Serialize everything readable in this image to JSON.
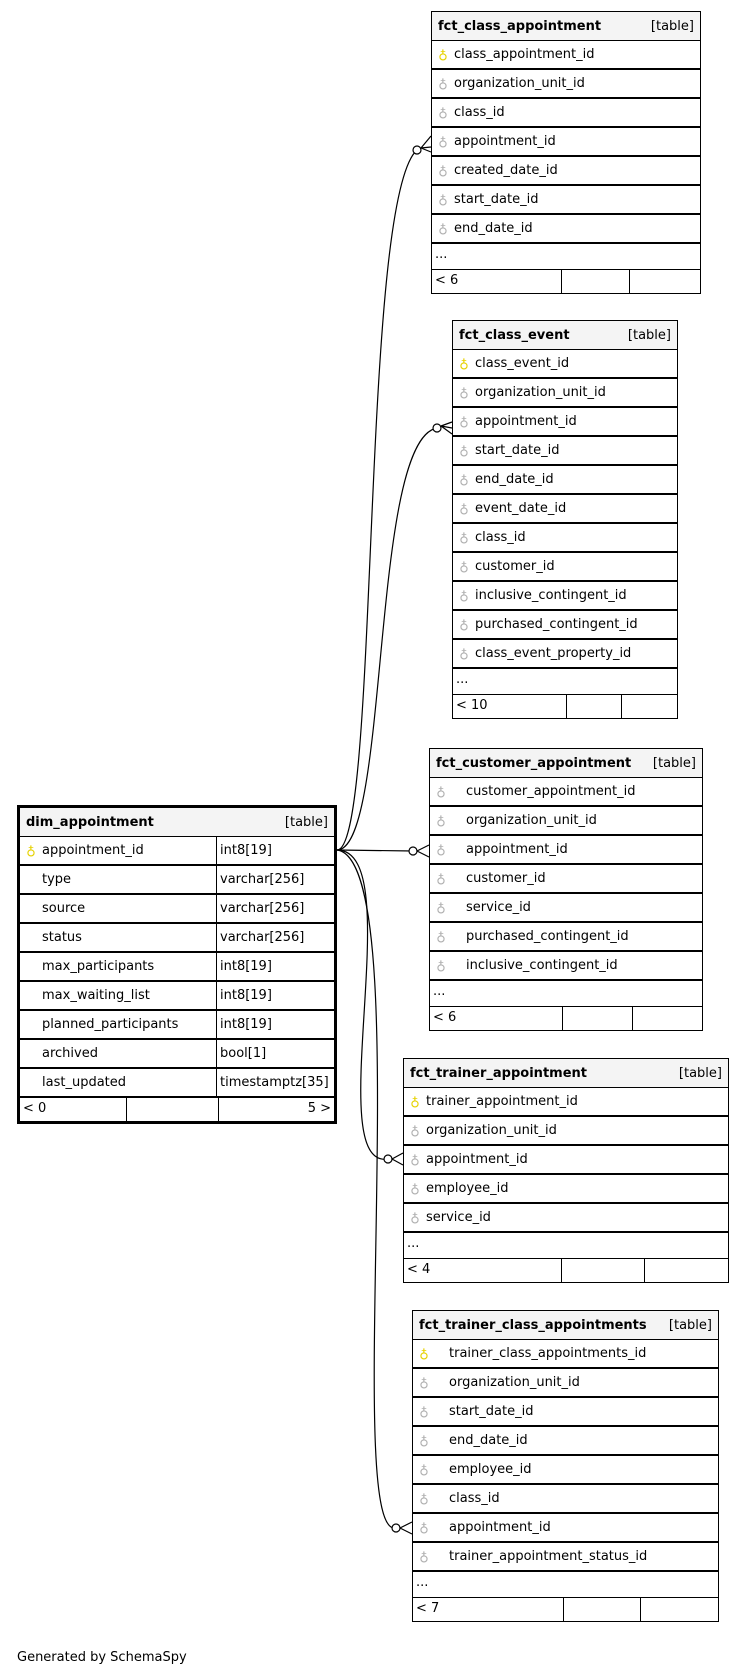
{
  "tables": [
    {
      "id": "fct_class_appointment",
      "name": "fct_class_appointment",
      "kind": "[table]",
      "columns": [
        {
          "name": "class_appointment_id",
          "key": "primary"
        },
        {
          "name": "organization_unit_id",
          "key": "foreign"
        },
        {
          "name": "class_id",
          "key": "foreign"
        },
        {
          "name": "appointment_id",
          "key": "foreign"
        },
        {
          "name": "created_date_id",
          "key": "foreign"
        },
        {
          "name": "start_date_id",
          "key": "foreign"
        },
        {
          "name": "end_date_id",
          "key": "foreign"
        }
      ],
      "more": "...",
      "footer": [
        "< 6",
        "",
        ""
      ]
    },
    {
      "id": "fct_class_event",
      "name": "fct_class_event",
      "kind": "[table]",
      "columns": [
        {
          "name": "class_event_id",
          "key": "primary"
        },
        {
          "name": "organization_unit_id",
          "key": "foreign"
        },
        {
          "name": "appointment_id",
          "key": "foreign"
        },
        {
          "name": "start_date_id",
          "key": "foreign"
        },
        {
          "name": "end_date_id",
          "key": "foreign"
        },
        {
          "name": "event_date_id",
          "key": "foreign"
        },
        {
          "name": "class_id",
          "key": "foreign"
        },
        {
          "name": "customer_id",
          "key": "foreign"
        },
        {
          "name": "inclusive_contingent_id",
          "key": "foreign"
        },
        {
          "name": "purchased_contingent_id",
          "key": "foreign"
        },
        {
          "name": "class_event_property_id",
          "key": "foreign"
        }
      ],
      "more": "...",
      "footer": [
        "< 10",
        "",
        ""
      ]
    },
    {
      "id": "fct_customer_appointment",
      "name": "fct_customer_appointment",
      "kind": "[table]",
      "columns": [
        {
          "name": "customer_appointment_id",
          "key": "foreign"
        },
        {
          "name": "organization_unit_id",
          "key": "foreign"
        },
        {
          "name": "appointment_id",
          "key": "foreign"
        },
        {
          "name": "customer_id",
          "key": "foreign"
        },
        {
          "name": "service_id",
          "key": "foreign"
        },
        {
          "name": "purchased_contingent_id",
          "key": "foreign"
        },
        {
          "name": "inclusive_contingent_id",
          "key": "foreign"
        }
      ],
      "more": "...",
      "footer": [
        "< 6",
        "",
        ""
      ]
    },
    {
      "id": "dim_appointment",
      "name": "dim_appointment",
      "kind": "[table]",
      "columns": [
        {
          "name": "appointment_id",
          "key": "primary",
          "type": "int8[19]"
        },
        {
          "name": "type",
          "type": "varchar[256]"
        },
        {
          "name": "source",
          "type": "varchar[256]"
        },
        {
          "name": "status",
          "type": "varchar[256]"
        },
        {
          "name": "max_participants",
          "type": "int8[19]"
        },
        {
          "name": "max_waiting_list",
          "type": "int8[19]"
        },
        {
          "name": "planned_participants",
          "type": "int8[19]"
        },
        {
          "name": "archived",
          "type": "bool[1]"
        },
        {
          "name": "last_updated",
          "type": "timestamptz[35]"
        }
      ],
      "footer": [
        "< 0",
        "",
        "5 >"
      ]
    },
    {
      "id": "fct_trainer_appointment",
      "name": "fct_trainer_appointment",
      "kind": "[table]",
      "columns": [
        {
          "name": "trainer_appointment_id",
          "key": "primary"
        },
        {
          "name": "organization_unit_id",
          "key": "foreign"
        },
        {
          "name": "appointment_id",
          "key": "foreign"
        },
        {
          "name": "employee_id",
          "key": "foreign"
        },
        {
          "name": "service_id",
          "key": "foreign"
        }
      ],
      "more": "...",
      "footer": [
        "< 4",
        "",
        ""
      ]
    },
    {
      "id": "fct_trainer_class_appointments",
      "name": "fct_trainer_class_appointments",
      "kind": "[table]",
      "columns": [
        {
          "name": "trainer_class_appointments_id",
          "key": "primary"
        },
        {
          "name": "organization_unit_id",
          "key": "foreign"
        },
        {
          "name": "start_date_id",
          "key": "foreign"
        },
        {
          "name": "end_date_id",
          "key": "foreign"
        },
        {
          "name": "employee_id",
          "key": "foreign"
        },
        {
          "name": "class_id",
          "key": "foreign"
        },
        {
          "name": "appointment_id",
          "key": "foreign"
        },
        {
          "name": "trainer_appointment_status_id",
          "key": "foreign"
        }
      ],
      "more": "...",
      "footer": [
        "< 7",
        "",
        ""
      ]
    }
  ],
  "relationships": [
    {
      "from": "dim_appointment.appointment_id",
      "to": "fct_class_appointment.appointment_id",
      "cardinality": "zero-or-many"
    },
    {
      "from": "dim_appointment.appointment_id",
      "to": "fct_class_event.appointment_id",
      "cardinality": "zero-or-many"
    },
    {
      "from": "dim_appointment.appointment_id",
      "to": "fct_customer_appointment.appointment_id",
      "cardinality": "zero-or-many"
    },
    {
      "from": "dim_appointment.appointment_id",
      "to": "fct_trainer_appointment.appointment_id",
      "cardinality": "zero-or-many"
    },
    {
      "from": "dim_appointment.appointment_id",
      "to": "fct_trainer_class_appointments.appointment_id",
      "cardinality": "zero-or-many"
    }
  ],
  "colors": {
    "primary_key": "#e6d200",
    "foreign_key": "#b0b0b0",
    "header_bg": "#f4f4f4"
  },
  "footer_text": "Generated by SchemaSpy"
}
